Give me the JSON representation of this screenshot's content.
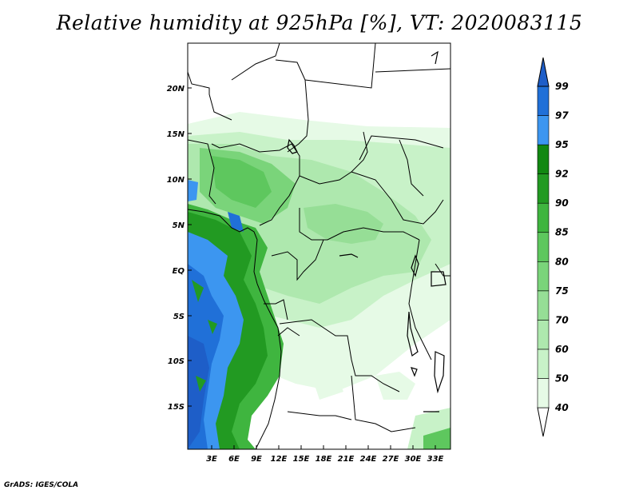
{
  "title": "Relative humidity at 925hPa [%], VT: 2020083115",
  "credit": "GrADS: IGES/COLA",
  "map": {
    "lat_labels": [
      "20N",
      "15N",
      "10N",
      "5N",
      "EQ",
      "5S",
      "10S",
      "15S"
    ],
    "lon_labels": [
      "3E",
      "6E",
      "9E",
      "12E",
      "15E",
      "18E",
      "21E",
      "24E",
      "27E",
      "30E",
      "33E"
    ]
  },
  "colorbar": {
    "labels": [
      "40",
      "50",
      "60",
      "70",
      "75",
      "80",
      "85",
      "90",
      "92",
      "95",
      "97",
      "99"
    ],
    "colors": [
      "#ffffff",
      "#e6fae6",
      "#c8f2c8",
      "#aee8ae",
      "#96de96",
      "#7ad47a",
      "#5ec75e",
      "#3fb53f",
      "#229a22",
      "#118811",
      "#3c96f0",
      "#2070d8",
      "#1e5ec8"
    ]
  }
}
